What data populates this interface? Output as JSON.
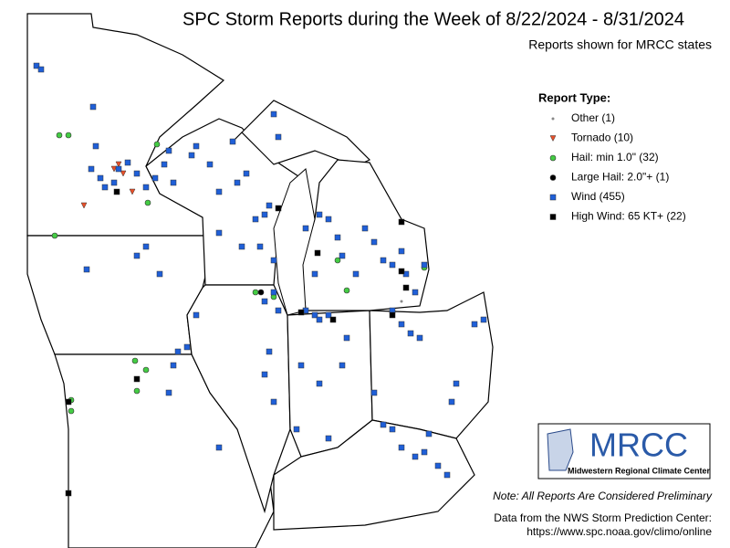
{
  "header": {
    "title": "SPC Storm Reports during the Week of 8/22/2024 - 8/31/2024",
    "subtitle": "Reports shown for MRCC states"
  },
  "legend": {
    "title": "Report Type:",
    "items": [
      {
        "label": "Other (1)",
        "shape": "dot",
        "color": "#888888"
      },
      {
        "label": "Tornado (10)",
        "shape": "triangle",
        "color": "#e8502a"
      },
      {
        "label": "Hail: min 1.0\" (32)",
        "shape": "circle",
        "color": "#44cc44"
      },
      {
        "label": "Large Hail: 2.0\"+ (1)",
        "shape": "circle",
        "color": "#000000"
      },
      {
        "label": "Wind (455)",
        "shape": "square",
        "color": "#1f5fd8"
      },
      {
        "label": "High Wind: 65 KT+ (22)",
        "shape": "square",
        "color": "#000000"
      }
    ]
  },
  "logo": {
    "name": "MRCC",
    "subtitle": "Midwestern Regional Climate Center"
  },
  "notes": {
    "preliminary": "Note: All Reports Are Considered Preliminary",
    "source": "Data from the NWS Storm Prediction Center:",
    "url": "https://www.spc.noaa.gov/climo/online"
  }
}
